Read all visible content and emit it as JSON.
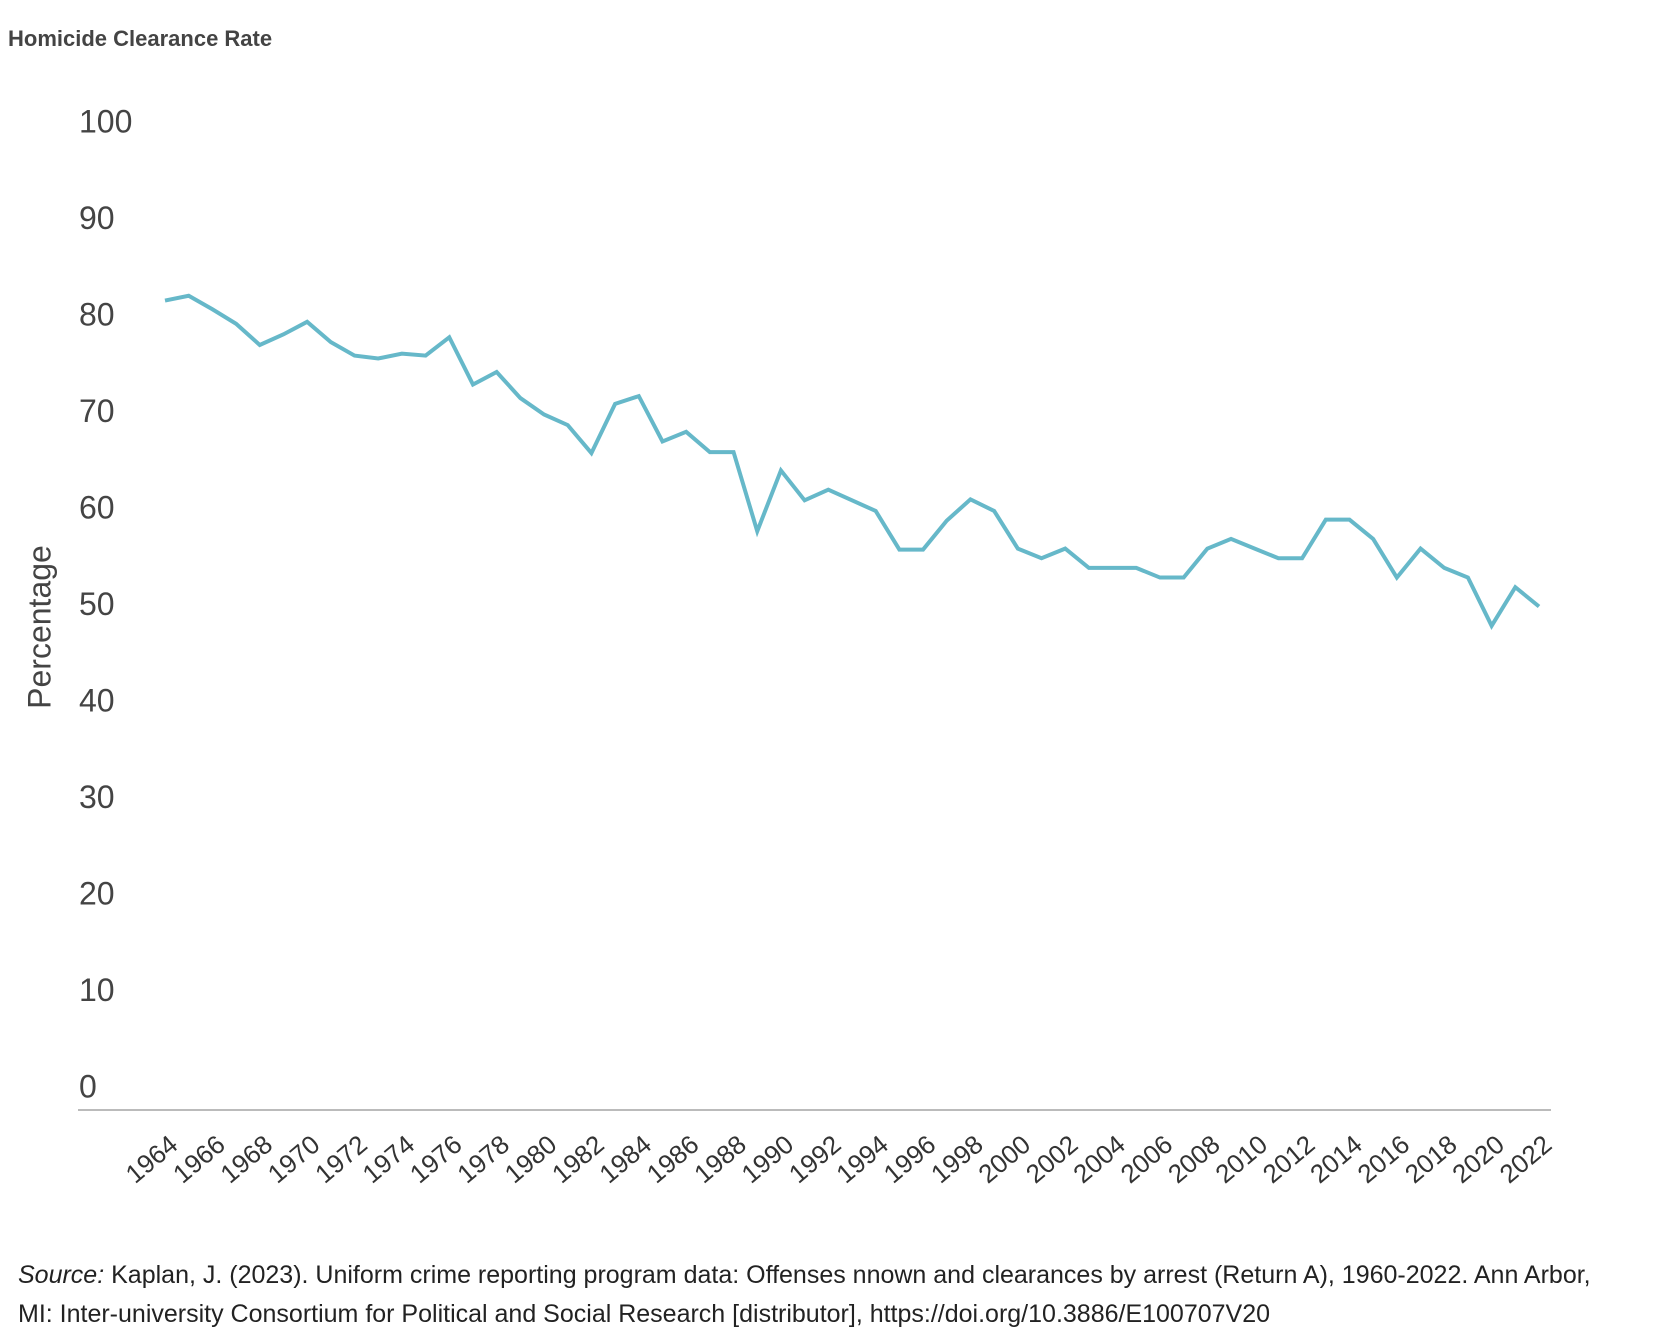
{
  "chart_data": {
    "type": "line",
    "title": "Homicide Clearance Rate",
    "y_label": "Percentage",
    "categories": [
      "1964",
      null,
      "1966",
      null,
      "1968",
      null,
      "1970",
      null,
      "1972",
      null,
      "1974",
      null,
      "1976",
      null,
      "1978",
      null,
      "1980",
      null,
      "1982",
      null,
      "1984",
      null,
      "1986",
      null,
      "1988",
      null,
      "1990",
      null,
      "1992",
      null,
      "1994",
      null,
      "1996",
      null,
      "1998",
      null,
      "2000",
      null,
      "2002",
      null,
      "2004",
      null,
      "2006",
      null,
      "2008",
      null,
      "2010",
      null,
      "2012",
      null,
      "2014",
      null,
      "2016",
      null,
      "2018",
      null,
      "2020",
      null,
      "2022"
    ],
    "values": [
      81.7,
      82.2,
      80.8,
      79.3,
      77.1,
      78.2,
      79.5,
      77.4,
      76.0,
      75.7,
      76.2,
      76.0,
      77.9,
      73.0,
      74.3,
      71.6,
      69.9,
      68.8,
      65.9,
      71.0,
      71.8,
      67.1,
      68.1,
      66.0,
      66.0,
      57.8,
      64.1,
      61.0,
      62.1,
      61.0,
      59.9,
      55.9,
      55.9,
      58.9,
      61.1,
      59.9,
      56.0,
      55.0,
      56.0,
      54.0,
      54.0,
      54.0,
      53.0,
      53.0,
      56.0,
      57.0,
      56.0,
      55.0,
      55.0,
      59.0,
      59.0,
      57.0,
      53.0,
      56.0,
      54.0,
      53.0,
      48.0,
      52.0,
      50.0
    ],
    "color": "#66b8c9",
    "ylim": [
      0,
      100
    ],
    "yticks": [
      0,
      10,
      20,
      30,
      40,
      50,
      60,
      70,
      80,
      90,
      100
    ],
    "grid": false,
    "source_label": "Source:",
    "source": "Kaplan, J. (2023). Uniform crime reporting program data: Offenses nnown and clearances by arrest (Return A), 1960-2022. Ann Arbor, MI: Inter-university Consortium for Political and Social Research [distributor], https://doi.org/10.3886/E100707V20"
  }
}
